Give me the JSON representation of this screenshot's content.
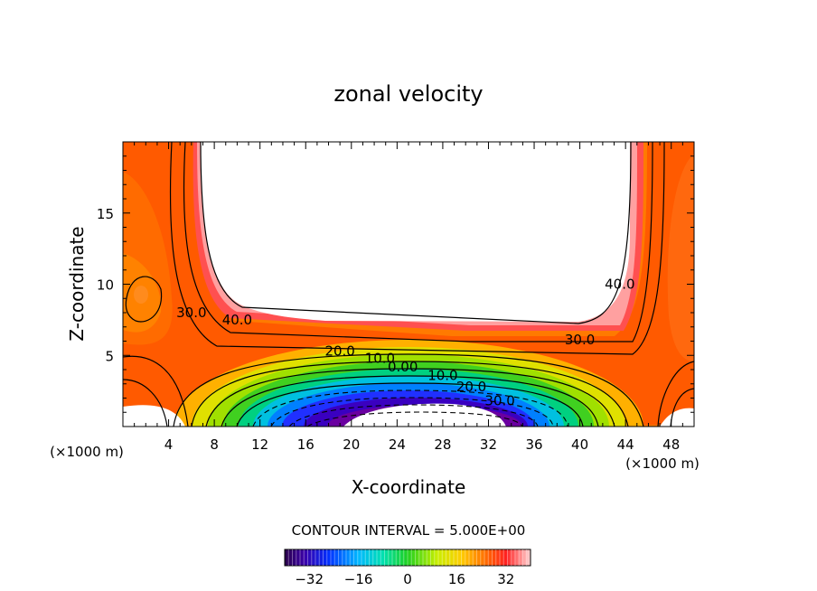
{
  "chart_data": {
    "type": "contour",
    "title": "zonal velocity",
    "xlabel": "X-coordinate",
    "ylabel": "Z-coordinate",
    "x_units_note": "(×1000 m)",
    "z_units_note": "(×1000 m)",
    "xlim": [
      0,
      50
    ],
    "zlim": [
      0,
      20
    ],
    "x_ticks": [
      4,
      8,
      12,
      16,
      20,
      24,
      28,
      32,
      36,
      40,
      44,
      48
    ],
    "z_ticks": [
      5,
      10,
      15
    ],
    "contour_labels": [
      {
        "text": "40.0",
        "x": 10.0,
        "z": 7.5
      },
      {
        "text": "30.0",
        "x": 6.0,
        "z": 8.0
      },
      {
        "text": "20.0",
        "x": 19.0,
        "z": 5.3
      },
      {
        "text": "10.0",
        "x": 22.5,
        "z": 4.8
      },
      {
        "text": "0.00",
        "x": 24.5,
        "z": 4.2
      },
      {
        "text": "10.0",
        "x": 28.0,
        "z": 3.6
      },
      {
        "text": "20.0",
        "x": 30.5,
        "z": 2.8
      },
      {
        "text": "30.0",
        "x": 33.0,
        "z": 1.8
      },
      {
        "text": "40.0",
        "x": 43.5,
        "z": 10.0
      },
      {
        "text": "30.0",
        "x": 40.0,
        "z": 6.1
      }
    ],
    "contour_interval_text": "CONTOUR INTERVAL = 5.000E+00",
    "colorbar": {
      "min": -40,
      "max": 40,
      "step": 5,
      "tick_labels": [
        "−32",
        "−16",
        "0",
        "16",
        "32"
      ],
      "tick_values": [
        -32,
        -16,
        0,
        16,
        32
      ]
    },
    "field_description": "jet-like zonal flow with negative core near bottom center"
  }
}
